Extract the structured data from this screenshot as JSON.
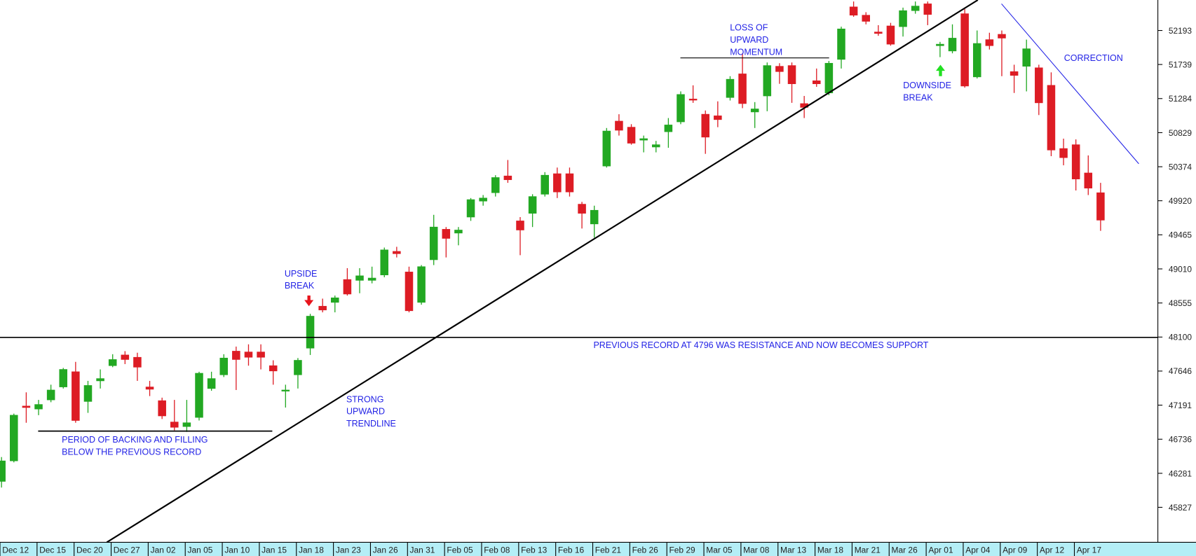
{
  "chart_data": {
    "type": "candlestick",
    "categories": [
      "Dec 12",
      null,
      null,
      "Dec 15",
      null,
      null,
      "Dec 20",
      null,
      null,
      "Dec 27",
      null,
      null,
      "Jan 02",
      null,
      null,
      "Jan 05",
      null,
      null,
      "Jan 10",
      null,
      null,
      "Jan 15",
      null,
      null,
      "Jan 18",
      null,
      null,
      "Jan 23",
      null,
      null,
      "Jan 26",
      null,
      null,
      "Jan 31",
      null,
      null,
      "Feb 05",
      null,
      null,
      "Feb 08",
      null,
      null,
      "Feb 13",
      null,
      null,
      "Feb 16",
      null,
      null,
      "Feb 21",
      null,
      null,
      "Feb 26",
      null,
      null,
      "Feb 29",
      null,
      null,
      "Mar 05",
      null,
      null,
      "Mar 08",
      null,
      null,
      "Mar 13",
      null,
      null,
      "Mar 18",
      null,
      null,
      "Mar 21",
      null,
      null,
      "Mar 26",
      null,
      null,
      "Apr 01",
      null,
      null,
      "Apr 04",
      null,
      null,
      "Apr 09",
      null,
      null,
      "Apr 12",
      null,
      null,
      "Apr 17",
      null,
      null
    ],
    "open": [
      46173,
      46447,
      47179,
      47139,
      47261,
      47434,
      47637,
      47240,
      47515,
      47718,
      47861,
      47830,
      47434,
      47251,
      46966,
      46905,
      47027,
      47413,
      47596,
      47912,
      47901,
      47901,
      47718,
      47383,
      47596,
      47952,
      48512,
      48563,
      48868,
      48857,
      48857,
      48929,
      49244,
      48969,
      48563,
      49132,
      49539,
      49488,
      49702,
      49915,
      50027,
      50251,
      49651,
      49752,
      50007,
      50281,
      50281,
      49874,
      49610,
      50383,
      50983,
      50902,
      50729,
      50637,
      50841,
      50973,
      51278,
      51075,
      51054,
      51298,
      51614,
      51105,
      51319,
      51715,
      51725,
      51217,
      51522,
      51359,
      51807,
      52508,
      52397,
      52173,
      52254,
      52244,
      52458,
      52549,
      51990,
      51919,
      52417,
      51573,
      52071,
      52142,
      51644,
      51715,
      51695,
      51461,
      50617,
      50668,
      50291,
      50027
    ],
    "high": [
      46498,
      47078,
      47362,
      47261,
      47464,
      47688,
      47769,
      47515,
      47668,
      47871,
      47912,
      47891,
      47515,
      47291,
      47261,
      47261,
      47637,
      47637,
      47871,
      47973,
      48003,
      48003,
      47790,
      47464,
      47820,
      48410,
      48613,
      48654,
      49020,
      49020,
      49040,
      49295,
      49305,
      49040,
      49061,
      49732,
      49569,
      49569,
      49956,
      49996,
      50261,
      50464,
      49702,
      50007,
      50302,
      50363,
      50363,
      49905,
      49854,
      50891,
      51075,
      50942,
      50790,
      50719,
      51024,
      51380,
      51461,
      51125,
      51247,
      51583,
      51888,
      51237,
      51766,
      51756,
      51766,
      51319,
      51685,
      51786,
      52244,
      52580,
      52437,
      52264,
      52295,
      52498,
      52580,
      52580,
      52041,
      52275,
      52478,
      52193,
      52163,
      52193,
      51736,
      52071,
      51736,
      51634,
      50749,
      50739,
      50525,
      50159
    ],
    "low": [
      46091,
      46427,
      46956,
      47057,
      47230,
      47413,
      46956,
      47088,
      47413,
      47698,
      47739,
      47515,
      47312,
      47006,
      46854,
      46834,
      46986,
      47383,
      47566,
      47393,
      47718,
      47668,
      47464,
      47159,
      47413,
      47861,
      48430,
      48430,
      48654,
      48685,
      48817,
      48898,
      49163,
      48430,
      48532,
      49061,
      49163,
      49325,
      49651,
      49854,
      49976,
      50159,
      49193,
      49569,
      49976,
      49956,
      49976,
      49549,
      49427,
      50363,
      50790,
      50668,
      50566,
      50566,
      50627,
      50942,
      51227,
      50546,
      50902,
      51258,
      51156,
      50891,
      51115,
      51481,
      51227,
      51024,
      51441,
      51329,
      51685,
      52376,
      52275,
      52122,
      51990,
      52112,
      52417,
      52264,
      51837,
      51888,
      51430,
      51552,
      51939,
      51583,
      51359,
      51380,
      51064,
      50515,
      50393,
      50057,
      49996,
      49518
    ],
    "close": [
      46447,
      47057,
      47159,
      47200,
      47393,
      47668,
      46986,
      47454,
      47546,
      47800,
      47800,
      47698,
      47403,
      47047,
      46895,
      46956,
      47617,
      47546,
      47820,
      47800,
      47830,
      47830,
      47647,
      47393,
      47790,
      48379,
      48461,
      48624,
      48674,
      48918,
      48888,
      49264,
      49213,
      48451,
      49040,
      49569,
      49417,
      49529,
      49935,
      49956,
      50230,
      50200,
      49529,
      49976,
      50261,
      50037,
      50037,
      49752,
      49793,
      50851,
      50861,
      50688,
      50749,
      50668,
      50932,
      51339,
      51268,
      50769,
      51003,
      51542,
      51217,
      51146,
      51725,
      51644,
      51481,
      51166,
      51481,
      51756,
      52214,
      52397,
      52315,
      52153,
      52010,
      52458,
      52519,
      52407,
      52010,
      52091,
      51451,
      52020,
      51990,
      52091,
      51593,
      51949,
      51227,
      50597,
      50495,
      50210,
      50088,
      49661
    ],
    "up_color": "#22a822",
    "down_color": "#dd1c24",
    "ylim": [
      45360,
      52600
    ],
    "yticks": [
      45827,
      46281,
      46736,
      47191,
      47646,
      48100,
      48555,
      49010,
      49465,
      49920,
      50374,
      50829,
      51284,
      51739,
      52193
    ],
    "annotations": [
      [
        "LOSS OF",
        "UPWARD",
        "MOMENTUM"
      ],
      [
        "CORRECTION"
      ],
      [
        "DOWNSIDE",
        "BREAK"
      ],
      [
        "UPSIDE",
        "BREAK"
      ],
      [
        "PREVIOUS RECORD AT 4796 WAS RESISTANCE AND NOW BECOMES SUPPORT"
      ],
      [
        "STRONG",
        "UPWARD",
        "TRENDLINE"
      ],
      [
        "PERIOD OF BACKING AND FILLING",
        "BELOW THE PREVIOUS RECORD"
      ]
    ]
  }
}
